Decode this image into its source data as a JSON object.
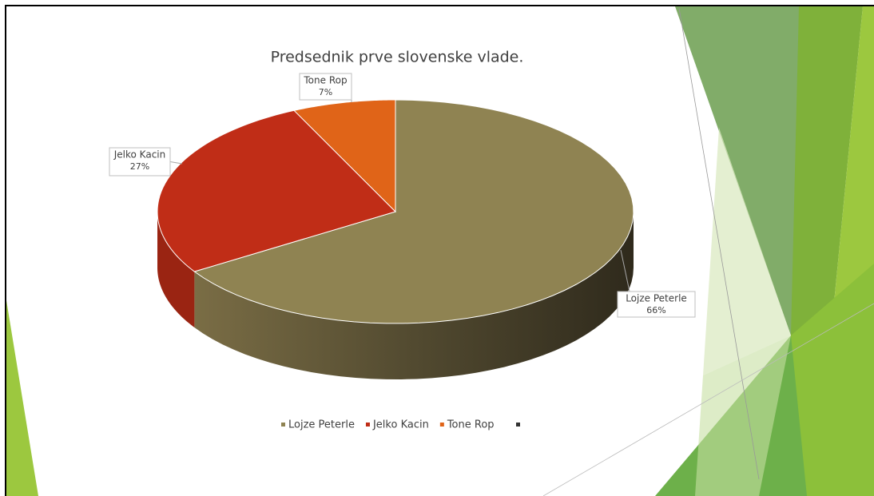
{
  "chart_data": {
    "type": "pie3d",
    "title": "Predsednik prve slovenske vlade.",
    "categories": [
      "Lojze Peterle",
      "Jelko Kacin",
      "Tone Rop"
    ],
    "values": [
      66,
      27,
      7
    ],
    "value_labels": [
      "66%",
      "27%",
      "7%"
    ],
    "colors": [
      "#8f8352",
      "#c02d17",
      "#e06418"
    ],
    "legend": "bottom"
  }
}
